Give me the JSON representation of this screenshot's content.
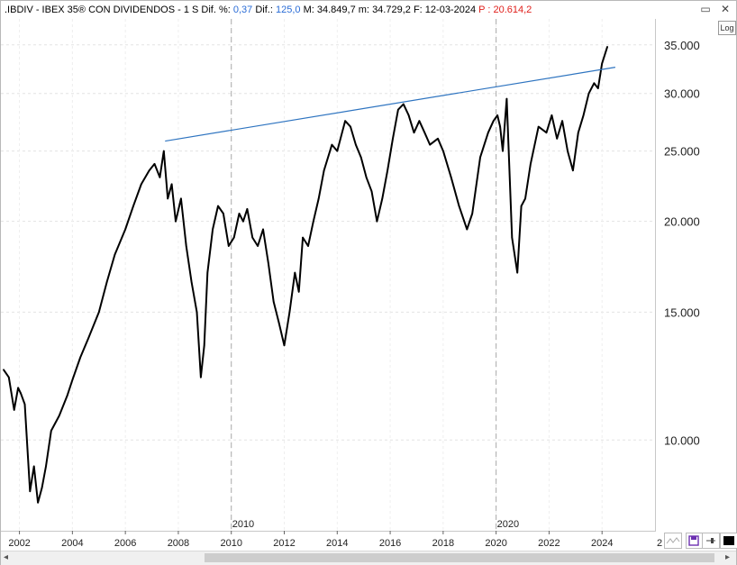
{
  "header": {
    "symbol": ".IBDIV - IBEX 35® CON DIVIDENDOS -",
    "period": "1 S",
    "difpct_label": "Dif. %:",
    "difpct_value": "0,37",
    "dif_label": "Dif.:",
    "dif_value": "125,0",
    "max_label": "M:",
    "max_value": "34.849,7",
    "min_label": "m:",
    "min_value": "34.729,2",
    "date_label": "F:",
    "date_value": "12-03-2024",
    "p_label": "P :",
    "p_value": "20.614,2"
  },
  "controls": {
    "restore": "▭",
    "close": "✕",
    "log_label": "Log"
  },
  "colors": {
    "trendline": "#2e74c0",
    "price": "#000000",
    "grid": "#e0e0e0",
    "accent": "#2a6cd6",
    "red": "#e0201c"
  },
  "chart_data": {
    "type": "line",
    "scale": "log",
    "ylim": [
      7500,
      38000
    ],
    "yticks": [
      10000,
      15000,
      20000,
      25000,
      30000,
      35000
    ],
    "ytick_labels": [
      "10.000",
      "15.000",
      "20.000",
      "25.000",
      "30.000",
      "35.000"
    ],
    "xlim": [
      2001.3,
      2026.0
    ],
    "xticks": [
      2002,
      2004,
      2006,
      2008,
      2010,
      2012,
      2014,
      2016,
      2018,
      2020,
      2022,
      2024
    ],
    "xtick_labels": [
      "2002",
      "2004",
      "2006",
      "2008",
      "2010",
      "2012",
      "2014",
      "2016",
      "2018",
      "2020",
      "2022",
      "2024"
    ],
    "xtick_extra": "2",
    "vlines": [
      {
        "x": 2010,
        "label": "2010"
      },
      {
        "x": 2020,
        "label": "2020"
      }
    ],
    "series": [
      {
        "x": [
          2001.4,
          2001.6,
          2001.8,
          2001.95,
          2002.05,
          2002.2,
          2002.4,
          2002.55,
          2002.7,
          2002.85,
          2003.0,
          2003.2,
          2003.5,
          2003.8,
          2004.0,
          2004.3,
          2004.6,
          2005.0,
          2005.3,
          2005.6,
          2006.0,
          2006.3,
          2006.6,
          2006.9,
          2007.1,
          2007.3,
          2007.45,
          2007.6,
          2007.75,
          2007.9,
          2008.1,
          2008.3,
          2008.5,
          2008.7,
          2008.85,
          2008.98,
          2009.1,
          2009.3,
          2009.5,
          2009.7,
          2009.9,
          2010.1,
          2010.3,
          2010.45,
          2010.6,
          2010.8,
          2011.0,
          2011.2,
          2011.4,
          2011.6,
          2011.8,
          2012.0,
          2012.2,
          2012.4,
          2012.55,
          2012.7,
          2012.9,
          2013.1,
          2013.3,
          2013.5,
          2013.8,
          2014.0,
          2014.3,
          2014.5,
          2014.7,
          2014.9,
          2015.1,
          2015.3,
          2015.5,
          2015.7,
          2015.9,
          2016.1,
          2016.3,
          2016.5,
          2016.7,
          2016.9,
          2017.1,
          2017.3,
          2017.5,
          2017.8,
          2018.0,
          2018.3,
          2018.6,
          2018.9,
          2019.1,
          2019.4,
          2019.7,
          2019.9,
          2020.05,
          2020.15,
          2020.25,
          2020.4,
          2020.6,
          2020.8,
          2020.95,
          2021.1,
          2021.3,
          2021.6,
          2021.9,
          2022.1,
          2022.3,
          2022.5,
          2022.7,
          2022.9,
          2023.1,
          2023.3,
          2023.5,
          2023.7,
          2023.85,
          2024.0,
          2024.2
        ],
        "y": [
          12500,
          12200,
          11000,
          11800,
          11600,
          11200,
          8500,
          9200,
          8200,
          8600,
          9200,
          10300,
          10800,
          11500,
          12100,
          13000,
          13800,
          15000,
          16500,
          18000,
          19500,
          21000,
          22500,
          23500,
          24000,
          23000,
          25000,
          21500,
          22500,
          20000,
          21500,
          18500,
          16500,
          15000,
          12200,
          13500,
          17000,
          19500,
          21000,
          20500,
          18500,
          19000,
          20500,
          20000,
          20800,
          19000,
          18500,
          19500,
          17500,
          15500,
          14500,
          13500,
          15000,
          17000,
          16000,
          19000,
          18500,
          20000,
          21500,
          23500,
          25500,
          25000,
          27500,
          27000,
          25500,
          24500,
          23000,
          22000,
          20000,
          21500,
          23500,
          26000,
          28500,
          29000,
          28000,
          26500,
          27500,
          26500,
          25500,
          26000,
          25000,
          23000,
          21000,
          19500,
          20500,
          24500,
          26500,
          27500,
          28000,
          27000,
          25000,
          29500,
          19000,
          17000,
          21000,
          21500,
          24000,
          27000,
          26500,
          28000,
          26000,
          27500,
          25000,
          23500,
          26500,
          28000,
          30000,
          31000,
          30500,
          33000,
          34800
        ]
      }
    ],
    "trendline": {
      "x1": 2007.5,
      "y1": 25800,
      "x2": 2024.5,
      "y2": 32600
    }
  }
}
